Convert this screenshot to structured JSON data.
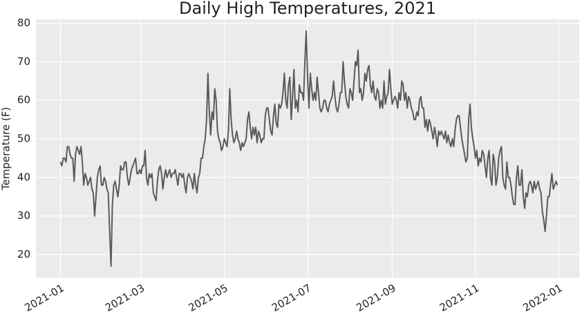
{
  "chart_data": {
    "type": "line",
    "title": "Daily High Temperatures, 2021",
    "ylabel": "Temperature (F)",
    "color": "#5a5a5a",
    "background": "#ebebeb",
    "grid": true,
    "xlim": [
      -18,
      380
    ],
    "xticks": [
      {
        "value": 0,
        "label": "2021-01"
      },
      {
        "value": 59,
        "label": "2021-03"
      },
      {
        "value": 120,
        "label": "2021-05"
      },
      {
        "value": 181,
        "label": "2021-07"
      },
      {
        "value": 243,
        "label": "2021-09"
      },
      {
        "value": 304,
        "label": "2021-11"
      },
      {
        "value": 365,
        "label": "2022-01"
      }
    ],
    "ylim": [
      14,
      81
    ],
    "yticks": [
      20,
      30,
      40,
      50,
      60,
      70,
      80
    ],
    "values": [
      44,
      43,
      45,
      45,
      44,
      48,
      48,
      46,
      45,
      45,
      39,
      46,
      48,
      47,
      46,
      48,
      44,
      38,
      41,
      40,
      38,
      39,
      40,
      37,
      36,
      30,
      35,
      40,
      42,
      43,
      38,
      38,
      40,
      39,
      37,
      36,
      26,
      17,
      33,
      38,
      39,
      37,
      35,
      38,
      43,
      42,
      42,
      44,
      44,
      40,
      38,
      40,
      42,
      43,
      44,
      45,
      41,
      41,
      42,
      41,
      43,
      43,
      47,
      40,
      38,
      41,
      40,
      41,
      36,
      35,
      34,
      39,
      42,
      43,
      41,
      37,
      40,
      42,
      40,
      41,
      42,
      40,
      41,
      41,
      42,
      40,
      38,
      41,
      41,
      40,
      41,
      38,
      36,
      40,
      41,
      40,
      39,
      37,
      41,
      38,
      36,
      40,
      41,
      45,
      45,
      48,
      50,
      55,
      67,
      57,
      51,
      57,
      55,
      63,
      60,
      52,
      50,
      49,
      47,
      48,
      50,
      49,
      48,
      52,
      63,
      55,
      51,
      49,
      50,
      52,
      50,
      49,
      47,
      49,
      48,
      49,
      50,
      55,
      57,
      53,
      50,
      53,
      51,
      53,
      49,
      52,
      51,
      49,
      50,
      50,
      56,
      58,
      58,
      55,
      52,
      51,
      56,
      59,
      54,
      53,
      59,
      58,
      59,
      62,
      67,
      60,
      58,
      64,
      66,
      55,
      61,
      68,
      58,
      60,
      57,
      64,
      62,
      62,
      60,
      70,
      78,
      66,
      58,
      67,
      63,
      60,
      62,
      60,
      66,
      62,
      58,
      57,
      58,
      60,
      60,
      58,
      57,
      59,
      60,
      61,
      65,
      61,
      58,
      57,
      59,
      62,
      62,
      70,
      65,
      61,
      59,
      58,
      63,
      62,
      60,
      65,
      70,
      69,
      73,
      62,
      63,
      60,
      62,
      67,
      65,
      68,
      69,
      64,
      62,
      65,
      61,
      60,
      63,
      62,
      58,
      60,
      58,
      65,
      59,
      61,
      62,
      68,
      63,
      59,
      60,
      61,
      60,
      58,
      62,
      60,
      65,
      64,
      60,
      62,
      58,
      61,
      60,
      58,
      57,
      55,
      55,
      57,
      56,
      60,
      61,
      58,
      58,
      53,
      55,
      52,
      55,
      54,
      52,
      50,
      53,
      51,
      48,
      52,
      51,
      52,
      51,
      50,
      52,
      49,
      51,
      49,
      48,
      50,
      48,
      52,
      55,
      56,
      56,
      53,
      50,
      48,
      46,
      44,
      45,
      55,
      59,
      53,
      50,
      48,
      45,
      47,
      43,
      45,
      44,
      47,
      46,
      43,
      40,
      45,
      47,
      40,
      38,
      46,
      44,
      38,
      40,
      45,
      47,
      48,
      40,
      38,
      37,
      44,
      40,
      40,
      38,
      35,
      33,
      33,
      40,
      43,
      38,
      38,
      42,
      35,
      32,
      36,
      35,
      38,
      39,
      38,
      36,
      39,
      37,
      38,
      39,
      37,
      36,
      31,
      29,
      26,
      30,
      35,
      35,
      38,
      41,
      37,
      38,
      39,
      38
    ]
  }
}
